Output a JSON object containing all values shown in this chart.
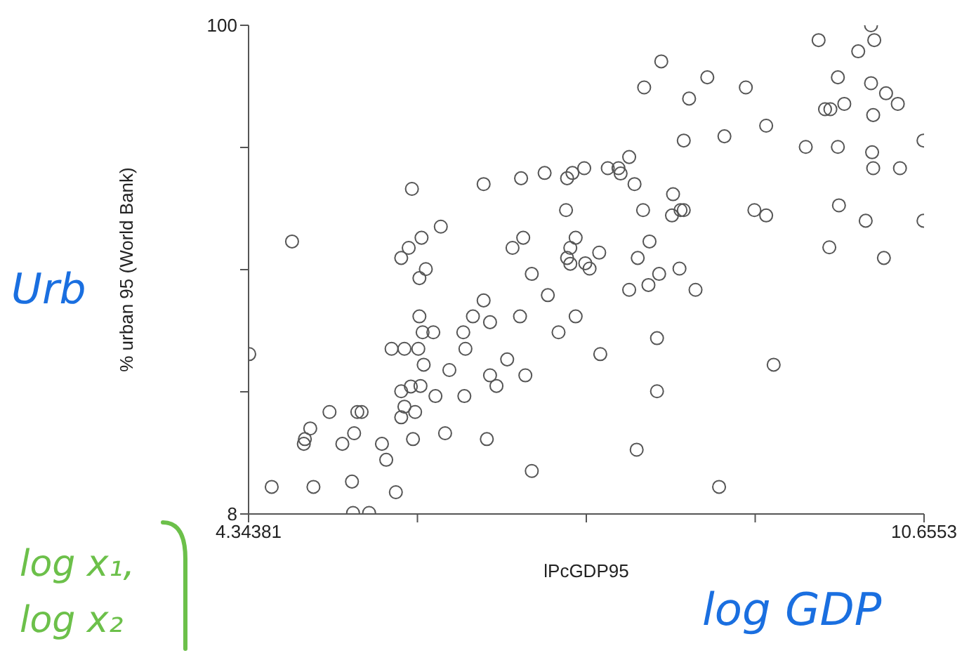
{
  "chart_data": {
    "type": "scatter",
    "xlabel": "lPcGDP95",
    "ylabel": "% urban 95 (World Bank)",
    "annotations": [
      "Urb",
      "log GDP",
      "log x₁,",
      "log x₂"
    ],
    "xlim": [
      4.34381,
      10.6553
    ],
    "xticks": [
      4.34381,
      {
        "value": 5.92168,
        "label": null
      },
      {
        "value": 7.49955,
        "label": null
      },
      {
        "value": 9.07743,
        "label": null
      },
      10.6553
    ],
    "ylim": [
      8,
      100
    ],
    "yticks": [
      8,
      {
        "value": 31,
        "label": null
      },
      {
        "value": 54,
        "label": null
      },
      {
        "value": 77,
        "label": null
      },
      100
    ],
    "grid": false,
    "legend": false,
    "marker": "circle",
    "series": [
      {
        "color": "#555555",
        "x": [
          4.35,
          4.56,
          4.75,
          4.86,
          4.87,
          4.92,
          4.95,
          5.1,
          5.22,
          5.31,
          5.32,
          5.33,
          5.36,
          5.4,
          5.47,
          5.59,
          5.63,
          5.68,
          5.72,
          5.77,
          5.77,
          5.77,
          5.8,
          5.8,
          5.84,
          5.86,
          5.87,
          5.88,
          5.9,
          5.93,
          5.94,
          5.94,
          5.95,
          5.96,
          5.97,
          5.98,
          6.0,
          6.07,
          6.09,
          6.14,
          6.18,
          6.22,
          6.35,
          6.36,
          6.37,
          6.44,
          6.54,
          6.54,
          6.57,
          6.6,
          6.6,
          6.66,
          6.76,
          6.81,
          6.88,
          6.89,
          6.91,
          6.93,
          6.99,
          6.99,
          7.11,
          7.14,
          7.24,
          7.31,
          7.32,
          7.32,
          7.35,
          7.35,
          7.37,
          7.4,
          7.4,
          7.48,
          7.49,
          7.53,
          7.62,
          7.63,
          7.7,
          7.8,
          7.82,
          7.9,
          7.9,
          7.95,
          7.97,
          7.98,
          8.03,
          8.08,
          8.09,
          8.16,
          8.16,
          8.18,
          8.2,
          8.3,
          8.31,
          8.37,
          8.38,
          8.41,
          8.41,
          8.46,
          8.52,
          8.63,
          8.74,
          8.79,
          8.99,
          9.07,
          9.18,
          9.18,
          9.25,
          9.55,
          9.67,
          9.73,
          9.77,
          9.78,
          9.85,
          9.85,
          9.86,
          9.91,
          10.04,
          10.11,
          10.16,
          10.16,
          10.17,
          10.18,
          10.18,
          10.19,
          10.28,
          10.3,
          10.41,
          10.43,
          10.65,
          10.65,
          8.04
        ],
        "values": [
          38.1,
          13.1,
          59.3,
          21.2,
          22.1,
          24.1,
          13.1,
          27.2,
          21.2,
          14.1,
          8.2,
          23.2,
          27.2,
          27.2,
          8.2,
          21.2,
          18.2,
          39.1,
          12.1,
          56.2,
          31.1,
          26.2,
          39.1,
          28.2,
          58.1,
          32.0,
          69.2,
          22.1,
          27.2,
          39.1,
          52.4,
          45.2,
          32.1,
          60.0,
          42.2,
          36.1,
          54.1,
          42.2,
          30.2,
          62.1,
          23.2,
          35.1,
          42.2,
          30.2,
          39.1,
          45.2,
          70.1,
          48.2,
          22.1,
          34.1,
          44.1,
          32.1,
          37.1,
          58.1,
          45.2,
          71.2,
          60.0,
          34.1,
          16.1,
          53.2,
          72.2,
          49.2,
          42.2,
          65.2,
          71.2,
          56.2,
          58.1,
          55.1,
          72.2,
          60.0,
          45.2,
          73.1,
          55.2,
          54.2,
          57.2,
          38.1,
          73.1,
          73.1,
          72.1,
          50.2,
          75.2,
          70.1,
          20.1,
          56.2,
          65.2,
          51.1,
          59.3,
          41.1,
          31.1,
          53.2,
          93.2,
          64.2,
          68.2,
          54.2,
          65.2,
          65.2,
          78.3,
          86.2,
          50.2,
          90.2,
          13.1,
          79.1,
          88.3,
          65.2,
          64.2,
          81.1,
          36.1,
          77.1,
          97.2,
          84.2,
          58.2,
          84.2,
          90.2,
          77.1,
          66.1,
          85.2,
          95.1,
          63.2,
          100,
          89.1,
          76.1,
          83.1,
          73.1,
          97.2,
          56.2,
          87.2,
          85.2,
          73.1,
          78.3,
          63.2,
          88.3
        ]
      }
    ]
  }
}
